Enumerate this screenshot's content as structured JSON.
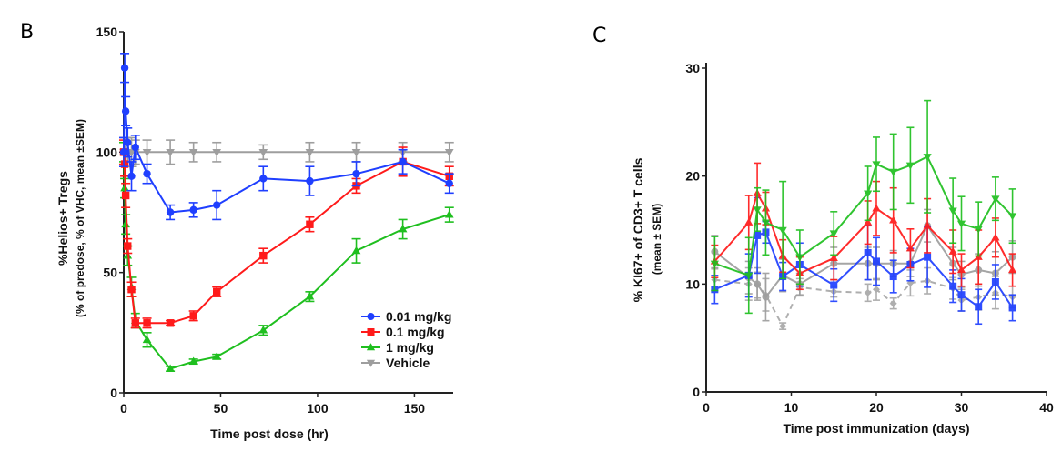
{
  "chart_data": [
    {
      "panel_label": "B",
      "type": "line",
      "title": "",
      "xlabel": "Time post dose (hr)",
      "ylabel": "%Helios+ Tregs",
      "ylabel_sub": "(% of predose, % of VHC, mean ±SEM)",
      "xlim": [
        0,
        170
      ],
      "ylim": [
        0,
        150
      ],
      "xticks": [
        0,
        50,
        100,
        150
      ],
      "yticks": [
        0,
        50,
        100,
        150
      ],
      "grid": false,
      "legend_position": "bottom-right",
      "x": [
        0,
        0.5,
        1,
        2,
        4,
        6,
        12,
        24,
        36,
        48,
        72,
        96,
        120,
        144,
        168
      ],
      "series": [
        {
          "name": "0.01 mg/kg",
          "color": "#1f3fff",
          "marker": "circle",
          "values": [
            100,
            135,
            117,
            104,
            90,
            102,
            91,
            75,
            76,
            78,
            89,
            88,
            91,
            96,
            87
          ],
          "errors": [
            6,
            6,
            6,
            6,
            6,
            5,
            4,
            3,
            3,
            6,
            5,
            6,
            5,
            5,
            4
          ]
        },
        {
          "name": "0.1 mg/kg",
          "color": "#ff1a1a",
          "marker": "square",
          "values": [
            100,
            95,
            82,
            61,
            43,
            29,
            29,
            29,
            32,
            42,
            57,
            70,
            86,
            96,
            90
          ],
          "errors": [
            5,
            5,
            5,
            3,
            3,
            2,
            2,
            1,
            2,
            2,
            3,
            3,
            3,
            6,
            4
          ]
        },
        {
          "name": "1 mg/kg",
          "color": "#1fbf1f",
          "marker": "triangle",
          "values": [
            100,
            85,
            70,
            57,
            44,
            30,
            22,
            10,
            13,
            15,
            26,
            40,
            59,
            68,
            74
          ],
          "errors": [
            4,
            4,
            4,
            4,
            4,
            3,
            3,
            1,
            1,
            1,
            2,
            2,
            5,
            4,
            3
          ]
        },
        {
          "name": "Vehicle",
          "color": "#9e9e9e",
          "marker": "triangle-down",
          "values": [
            100,
            100,
            100,
            100,
            100,
            100,
            100,
            100,
            100,
            100,
            100,
            100,
            100,
            100,
            100
          ],
          "errors": [
            6,
            6,
            6,
            6,
            6,
            5,
            5,
            5,
            4,
            4,
            3,
            4,
            4,
            4,
            4
          ]
        }
      ]
    },
    {
      "panel_label": "C",
      "type": "line",
      "title": "",
      "xlabel": "Time post immunization (days)",
      "ylabel": "% KI67+ of CD3+ T cells",
      "ylabel_sub": "(mean ± SEM)",
      "xlim": [
        0,
        40
      ],
      "ylim": [
        0,
        30
      ],
      "xticks": [
        0,
        10,
        20,
        30,
        40
      ],
      "yticks": [
        0,
        10,
        20,
        30
      ],
      "grid": false,
      "legend_position": "none",
      "x": [
        1,
        5,
        6,
        7,
        9,
        11,
        15,
        19,
        20,
        22,
        24,
        26,
        29,
        30,
        32,
        34,
        36
      ],
      "series": [
        {
          "name": "green",
          "color": "#1fbf1f",
          "marker": "triangle-down",
          "dashed": false,
          "values": [
            11.9,
            10.8,
            16.9,
            15.7,
            15.0,
            12.5,
            14.7,
            18.4,
            21.1,
            20.4,
            21.0,
            21.8,
            16.8,
            15.6,
            15.1,
            17.9,
            16.3
          ],
          "errors": [
            2.5,
            3.5,
            2.0,
            3.0,
            4.5,
            2.5,
            2.0,
            2.5,
            2.5,
            3.5,
            3.5,
            5.2,
            3.0,
            2.5,
            2.5,
            2.0,
            2.5
          ]
        },
        {
          "name": "red",
          "color": "#ff1a1a",
          "marker": "triangle",
          "dashed": false,
          "values": [
            12.1,
            15.7,
            18.4,
            17.0,
            12.6,
            11.0,
            12.4,
            15.7,
            17.0,
            15.9,
            13.3,
            15.4,
            13.0,
            11.3,
            12.5,
            14.3,
            11.3
          ],
          "errors": [
            1.5,
            2.5,
            2.8,
            1.5,
            1.5,
            1.5,
            2.0,
            2.0,
            2.5,
            3.0,
            1.8,
            2.5,
            2.0,
            1.5,
            2.5,
            1.8,
            1.5
          ]
        },
        {
          "name": "blue",
          "color": "#1f3fff",
          "marker": "square",
          "dashed": false,
          "values": [
            9.5,
            10.8,
            14.5,
            14.8,
            10.7,
            11.8,
            9.9,
            12.9,
            12.1,
            10.7,
            11.8,
            12.5,
            9.8,
            9.0,
            7.9,
            10.2,
            7.8
          ],
          "errors": [
            1.3,
            2.0,
            3.5,
            1.0,
            1.3,
            2.0,
            1.5,
            2.5,
            2.2,
            1.5,
            1.5,
            2.8,
            1.5,
            1.5,
            1.6,
            1.6,
            1.2
          ]
        },
        {
          "name": "gray-solid",
          "color": "#9e9e9e",
          "marker": "circle",
          "dashed": false,
          "values": [
            13.0,
            10.6,
            10.0,
            8.8,
            10.8,
            10.0,
            11.9,
            11.9,
            11.9,
            11.9,
            11.9,
            15.4,
            11.9,
            10.9,
            11.3,
            11.0,
            12.5
          ],
          "errors": [
            1.5,
            1.5,
            1.5,
            2.2,
            1.5,
            1.0,
            1.5,
            1.5,
            1.5,
            1.2,
            1.2,
            1.5,
            1.5,
            1.2,
            1.5,
            2.0,
            1.5
          ]
        },
        {
          "name": "gray-dashed",
          "color": "#a8a8a8",
          "marker": "diamond",
          "dashed": true,
          "values": [
            10.4,
            10.0,
            9.9,
            9.0,
            6.1,
            9.7,
            9.3,
            9.2,
            9.5,
            8.2,
            10.1,
            10.3,
            9.6,
            8.5,
            8.8,
            9.2,
            8.8
          ],
          "errors": [
            1.0,
            1.5,
            1.2,
            1.5,
            0.3,
            0.8,
            0.5,
            0.8,
            1.0,
            0.5,
            1.2,
            1.2,
            1.0,
            1.0,
            1.2,
            1.5,
            1.0
          ]
        }
      ]
    }
  ]
}
